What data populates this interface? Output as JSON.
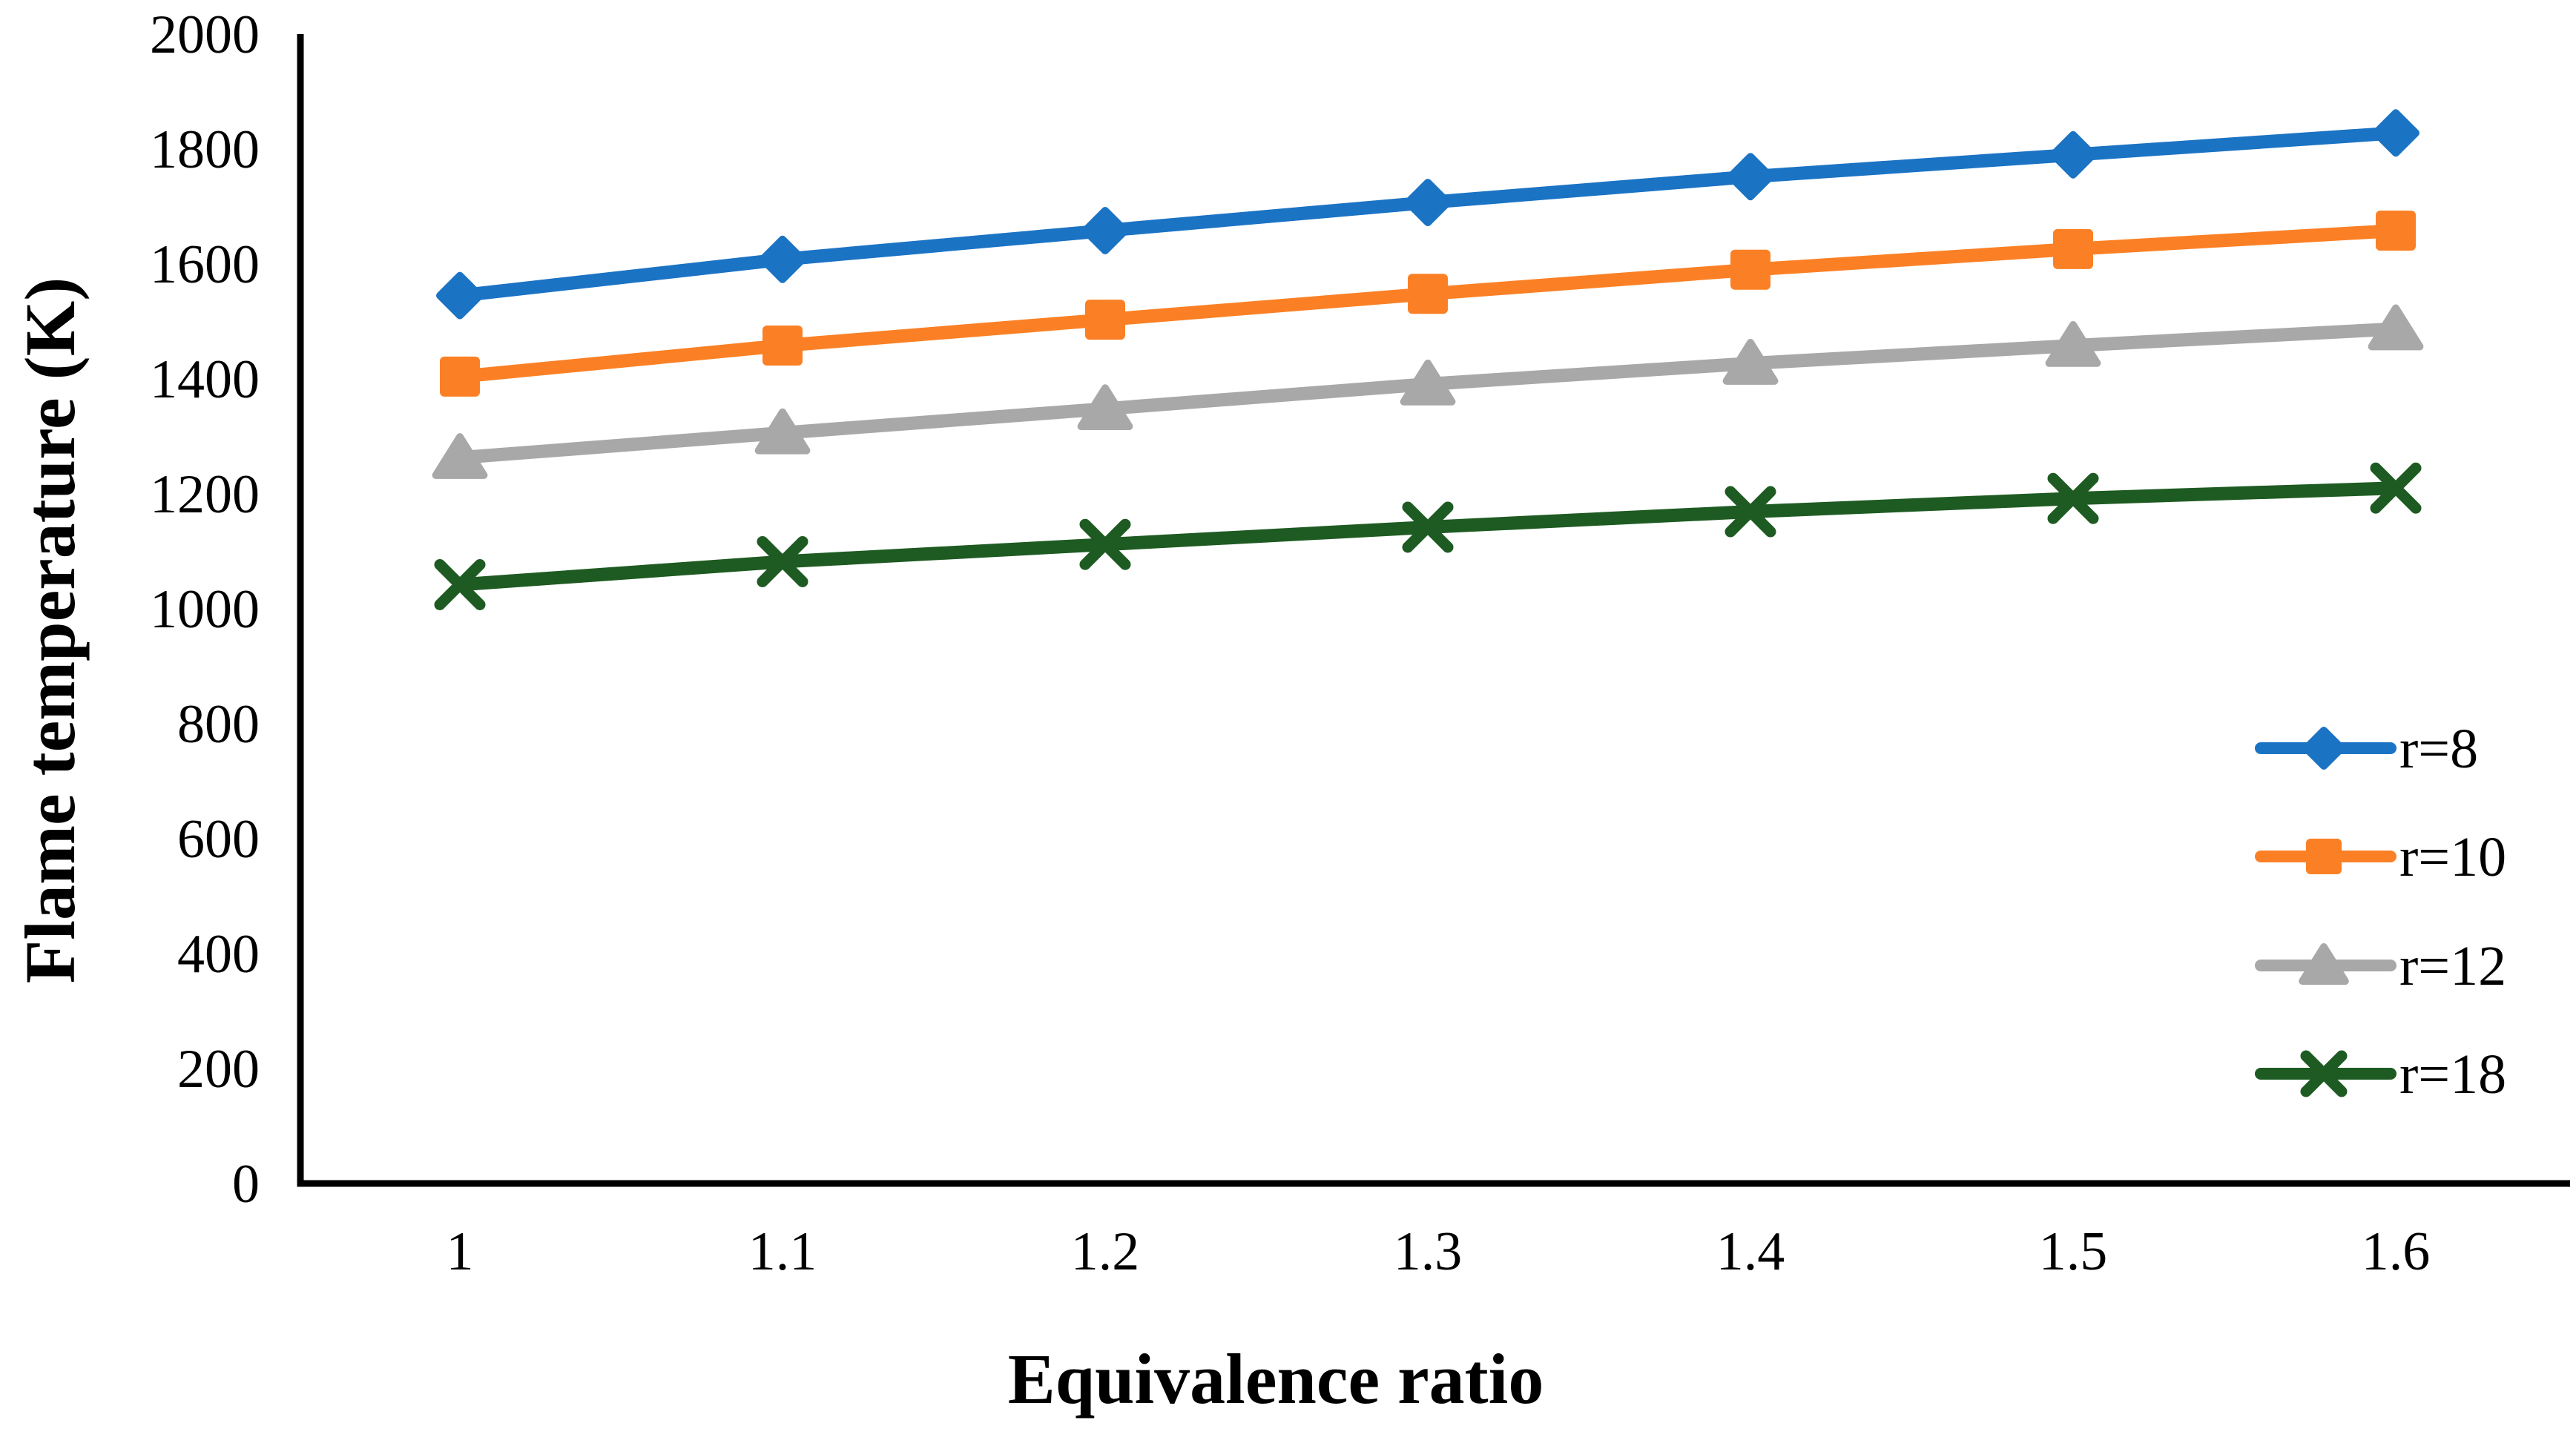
{
  "chart_data": {
    "type": "line",
    "title": "",
    "xlabel": "Equivalence ratio",
    "ylabel": "Flame temperature (K)",
    "x": [
      1,
      1.1,
      1.2,
      1.3,
      1.4,
      1.5,
      1.6
    ],
    "x_tick_labels": [
      "1",
      "1.1",
      "1.2",
      "1.3",
      "1.4",
      "1.5",
      "1.6"
    ],
    "ylim": [
      0,
      2000
    ],
    "y_tick_step": 200,
    "y_tick_labels": [
      "0",
      "200",
      "400",
      "600",
      "800",
      "1000",
      "1200",
      "1400",
      "1600",
      "1800",
      "2000"
    ],
    "grid": false,
    "legend_position": "right-middle",
    "axis_color": "#000000",
    "background_color": "#ffffff",
    "series": [
      {
        "name": "r=8",
        "color": "#1B73C4",
        "marker": "diamond",
        "values": [
          1545,
          1608,
          1658,
          1707,
          1752,
          1790,
          1828
        ]
      },
      {
        "name": "r=10",
        "color": "#FB8025",
        "marker": "square",
        "values": [
          1404,
          1458,
          1503,
          1548,
          1590,
          1626,
          1658
        ]
      },
      {
        "name": "r=12",
        "color": "#A8A8A8",
        "marker": "triangle",
        "values": [
          1263,
          1306,
          1348,
          1391,
          1427,
          1458,
          1487
        ]
      },
      {
        "name": "r=18",
        "color": "#1E5B22",
        "marker": "x",
        "values": [
          1042,
          1082,
          1112,
          1142,
          1169,
          1192,
          1210
        ]
      }
    ]
  }
}
